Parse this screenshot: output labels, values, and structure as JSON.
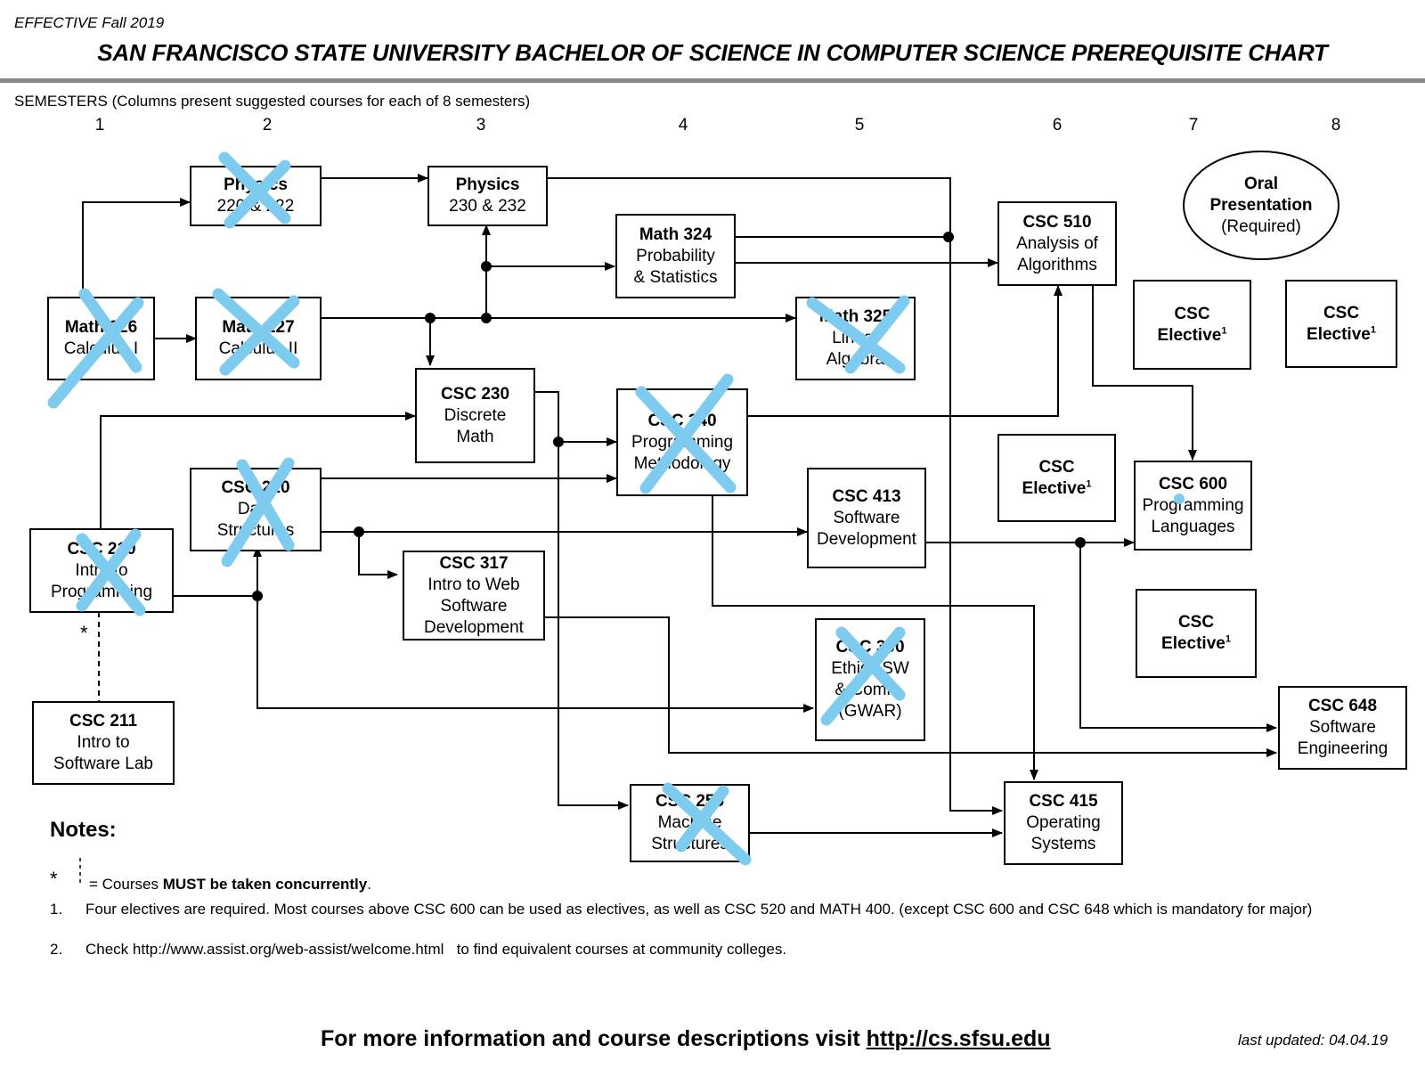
{
  "header": {
    "effective": "EFFECTIVE Fall 2019",
    "title": "SAN FRANCISCO STATE UNIVERSITY BACHELOR OF SCIENCE IN COMPUTER SCIENCE PREREQUISITE CHART"
  },
  "semesters": {
    "label": "SEMESTERS (Columns present suggested courses for each of 8 semesters)",
    "numbers": [
      "1",
      "2",
      "3",
      "4",
      "5",
      "6",
      "7",
      "8"
    ]
  },
  "courses": {
    "math226": {
      "line1": "Math 226",
      "line2": "Calculus I"
    },
    "math227": {
      "line1": "Math 227",
      "line2": "Calculus II"
    },
    "phys220": {
      "line1": "Physics",
      "line2": "220 & 222"
    },
    "phys230": {
      "line1": "Physics",
      "line2": "230 & 232"
    },
    "math324": {
      "line1": "Math 324",
      "line2": "Probability",
      "line3": "& Statistics"
    },
    "math325": {
      "line1": "Math 325",
      "line2": "Linear",
      "line3": "Algebra"
    },
    "csc230": {
      "line1": "CSC 230",
      "line2": "Discrete",
      "line3": "Math"
    },
    "csc340": {
      "line1": "CSC 340",
      "line2": "Programming",
      "line3": "Methodology"
    },
    "csc210": {
      "line1": "CSC 210",
      "line2": "Intro to",
      "line3": "Programming"
    },
    "csc220": {
      "line1": "CSC 220",
      "line2": "Data",
      "line3": "Structures"
    },
    "csc211": {
      "line1": "CSC 211",
      "line2": "Intro to",
      "line3": "Software Lab"
    },
    "csc317": {
      "line1": "CSC 317",
      "line2": "Intro to Web",
      "line3": "Software",
      "line4": "Development"
    },
    "csc413": {
      "line1": "CSC 413",
      "line2": "Software",
      "line3": "Development"
    },
    "csc300": {
      "line1": "CSC 300",
      "line2": "Ethics SW",
      "line3": "& Comm.",
      "line4": "(GWAR)"
    },
    "csc256": {
      "line1": "CSC 256",
      "line2": "Machine",
      "line3": "Structures"
    },
    "csc510": {
      "line1": "CSC 510",
      "line2": "Analysis of",
      "line3": "Algorithms"
    },
    "csc415": {
      "line1": "CSC 415",
      "line2": "Operating",
      "line3": "Systems"
    },
    "csc600": {
      "line1": "CSC 600",
      "line2": "Programming",
      "line3": "Languages"
    },
    "csc648": {
      "line1": "CSC 648",
      "line2": "Software",
      "line3": "Engineering"
    },
    "elective": {
      "line1": "CSC",
      "line2": "Elective",
      "sup": "1"
    },
    "oral": {
      "line1": "Oral",
      "line2": "Presentation",
      "line3": "(Required)"
    }
  },
  "concurrent_star": "*",
  "notes": {
    "title": "Notes:",
    "star_symbol": "*",
    "concurrent_pre": "= Courses ",
    "concurrent_bold": "MUST be taken concurrently",
    "concurrent_post": ".",
    "n1_num": "1.",
    "n1": "Four electives are required. Most courses above CSC 600 can be used as electives, as well as CSC 520 and MATH 400. (except CSC 600 and CSC 648 which is mandatory for major)",
    "n2_num": "2.",
    "n2": "Check http://www.assist.org/web-assist/welcome.html   to find equivalent courses at community colleges."
  },
  "footer": {
    "text": "For more information and course descriptions visit ",
    "link": "http://cs.sfsu.edu",
    "updated": "last updated: 04.04.19"
  },
  "colors": {
    "xmark": "#7ecbf0",
    "rule": "#888888"
  }
}
